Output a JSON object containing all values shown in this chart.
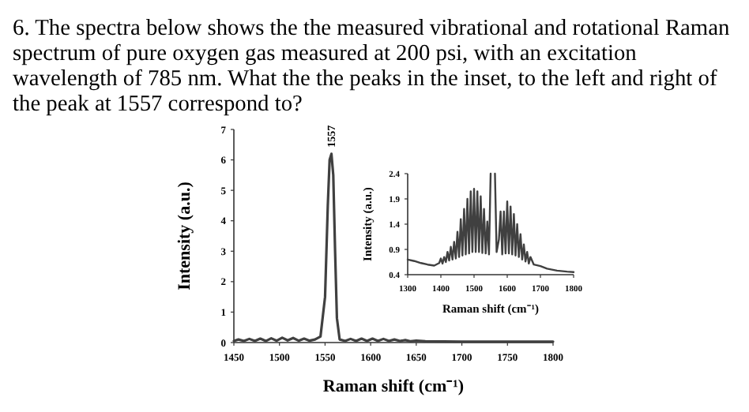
{
  "chart_data": [
    {
      "type": "line",
      "title": "6. The spectra below shows the  the measured vibrational and rotational Raman spectrum of pure oxygen gas measured at 200 psi, with an excitation wavelength of 785 nm. What the the peaks in the inset, to the left and right of the peak at 1557 correspond to?",
      "xlabel": "Raman shift (cm⁻¹)",
      "ylabel": "Intensity (a.u.)",
      "xlim": [
        1450,
        1800
      ],
      "xticks": [
        1450,
        1500,
        1550,
        1600,
        1650,
        1700,
        1750,
        1800
      ],
      "ylim": [
        0,
        7
      ],
      "yticks": [
        0,
        1,
        2,
        3,
        4,
        5,
        6,
        7
      ],
      "annotations": [
        {
          "text": "1557",
          "x": 1557,
          "y": 6.2
        }
      ],
      "series": [
        {
          "color": "#404040",
          "x": [
            1450,
            1455,
            1461,
            1467,
            1473,
            1479,
            1485,
            1491,
            1497,
            1503,
            1509,
            1515,
            1521,
            1527,
            1533,
            1539,
            1545,
            1550,
            1553,
            1555,
            1557,
            1559,
            1561,
            1563,
            1566,
            1572,
            1578,
            1584,
            1590,
            1596,
            1602,
            1608,
            1614,
            1620,
            1626,
            1632,
            1638,
            1644,
            1650,
            1660,
            1700,
            1750,
            1800
          ],
          "values": [
            0.05,
            0.1,
            0.05,
            0.12,
            0.05,
            0.13,
            0.05,
            0.14,
            0.06,
            0.16,
            0.07,
            0.15,
            0.06,
            0.13,
            0.06,
            0.1,
            0.2,
            1.5,
            4.5,
            6,
            6.2,
            5.5,
            3,
            0.8,
            0.1,
            0.05,
            0.12,
            0.05,
            0.13,
            0.05,
            0.13,
            0.05,
            0.12,
            0.05,
            0.1,
            0.05,
            0.08,
            0.04,
            0.06,
            0.04,
            0.03,
            0.03,
            0.03
          ]
        }
      ]
    },
    {
      "type": "line",
      "xlabel": "Raman shift (cm⁻¹)",
      "ylabel": "Intensity (a.u.)",
      "xlim": [
        1300,
        1800
      ],
      "xticks": [
        1300,
        1400,
        1500,
        1600,
        1700,
        1800
      ],
      "ylim": [
        0.4,
        2.4
      ],
      "yticks": [
        0.4,
        0.9,
        1.4,
        1.9,
        2.4
      ],
      "series": [
        {
          "color": "#404040",
          "x": [
            1300,
            1320,
            1340,
            1360,
            1380,
            1395,
            1400,
            1405,
            1410,
            1415,
            1420,
            1425,
            1430,
            1435,
            1440,
            1445,
            1450,
            1455,
            1460,
            1465,
            1470,
            1475,
            1480,
            1485,
            1490,
            1495,
            1500,
            1505,
            1510,
            1515,
            1520,
            1525,
            1530,
            1535,
            1540,
            1545,
            1550,
            1553,
            1560,
            1563,
            1568,
            1575,
            1580,
            1585,
            1590,
            1595,
            1600,
            1605,
            1610,
            1615,
            1620,
            1625,
            1630,
            1635,
            1640,
            1645,
            1650,
            1655,
            1660,
            1665,
            1670,
            1680,
            1700,
            1720,
            1750,
            1780,
            1800
          ],
          "values": [
            0.7,
            0.67,
            0.63,
            0.6,
            0.58,
            0.63,
            0.72,
            0.62,
            0.75,
            0.65,
            0.85,
            0.68,
            0.95,
            0.7,
            1.05,
            0.72,
            1.25,
            0.75,
            1.5,
            0.78,
            1.7,
            0.8,
            1.9,
            0.82,
            2.05,
            0.85,
            2.1,
            0.85,
            2.05,
            0.85,
            1.95,
            0.83,
            1.7,
            0.82,
            1.45,
            0.8,
            2.4,
            null,
            null,
            2.4,
            0.85,
            1.1,
            1.65,
            0.8,
            1.65,
            0.82,
            1.85,
            0.82,
            1.75,
            0.8,
            1.6,
            0.78,
            1.4,
            0.75,
            1.2,
            0.7,
            1.0,
            0.66,
            0.85,
            0.62,
            0.75,
            0.6,
            0.57,
            0.52,
            0.48,
            0.46,
            0.45
          ]
        }
      ]
    }
  ]
}
